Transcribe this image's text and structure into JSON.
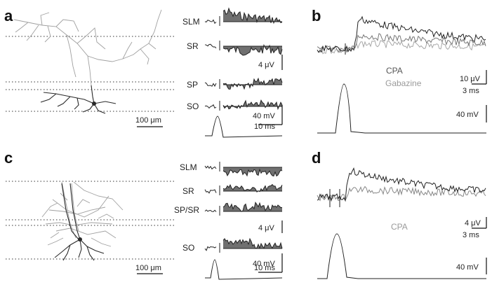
{
  "panels": {
    "a": {
      "letter": "a",
      "layers": [
        "SLM",
        "SR",
        "SP",
        "SO"
      ],
      "scale_micron": "100 μm",
      "scale_uv": "4 μV",
      "scale_mv": "40 mV",
      "scale_ms": "10 ms"
    },
    "b": {
      "letter": "b",
      "legend_dark": "CPA",
      "legend_light": "Gabazine",
      "scale_uv": "10 μV",
      "scale_ms": "3 ms",
      "scale_mv": "40 mV"
    },
    "c": {
      "letter": "c",
      "layers": [
        "SLM",
        "SR",
        "SP/SR",
        "SO"
      ],
      "scale_micron": "100 μm",
      "scale_uv": "4 μV",
      "scale_mv": "40 mV",
      "scale_ms": "10 ms"
    },
    "d": {
      "letter": "d",
      "legend": "CPA",
      "scale_uv": "4 μV",
      "scale_ms": "3 ms",
      "scale_mv": "40 mV"
    }
  },
  "colors": {
    "trace_dark": "#222222",
    "trace_mid": "#777777",
    "trace_light": "#a8a8a8",
    "fill": "#707070",
    "neuron_light": "#a0a0a0",
    "neuron_dark": "#2a2a2a"
  }
}
